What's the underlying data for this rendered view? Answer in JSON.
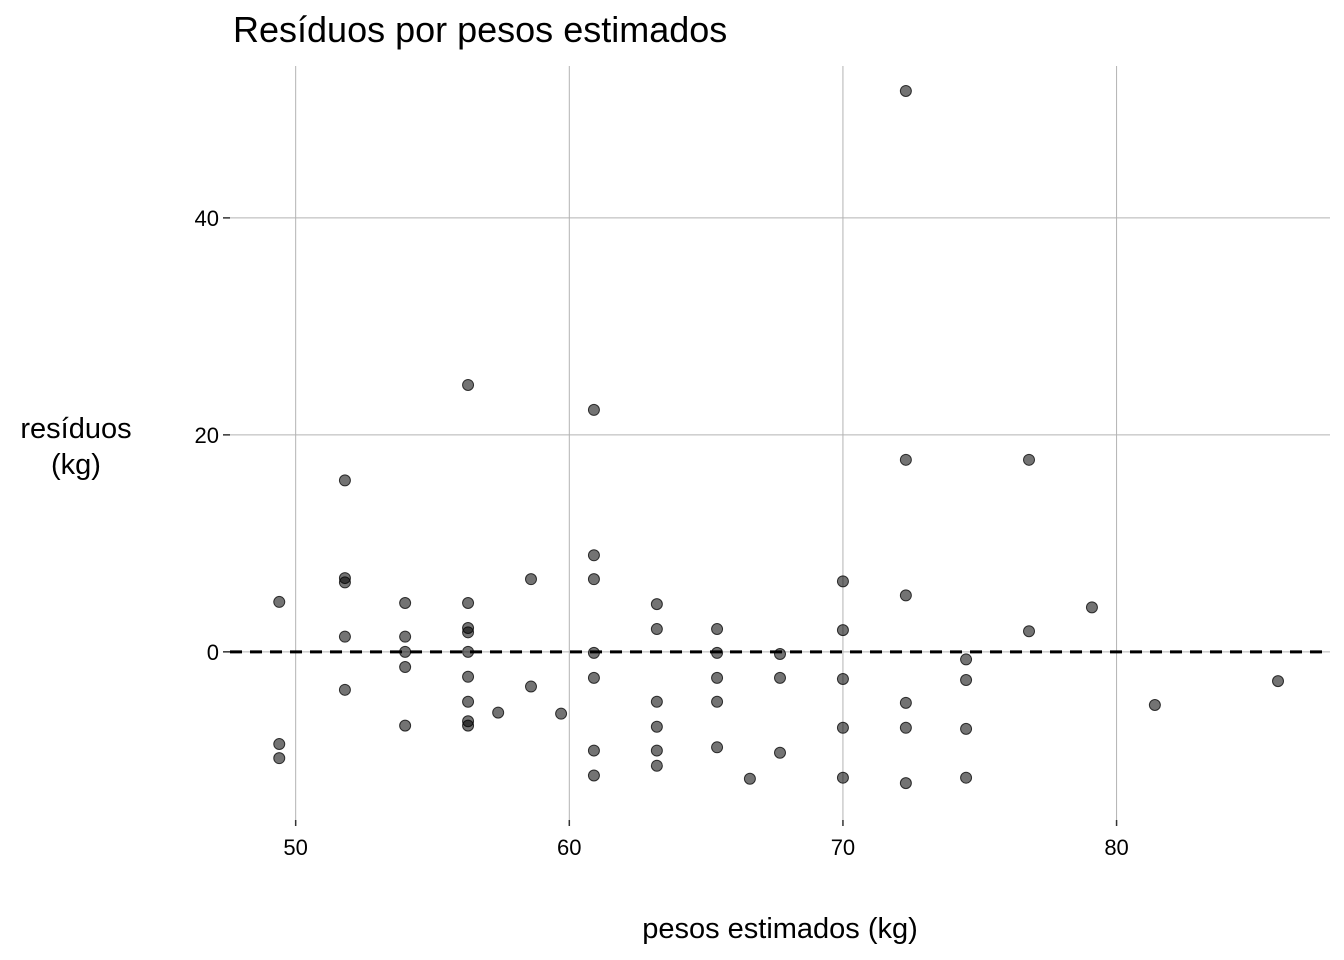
{
  "chart_data": {
    "type": "scatter",
    "title": "Resíduos por pesos estimados",
    "xlabel": "pesos estimados (kg)",
    "ylabel_lines": [
      "resíduos",
      "(kg)"
    ],
    "xlim": [
      47.6,
      87.8
    ],
    "ylim": [
      -15.5,
      54.0
    ],
    "xticks": [
      50,
      60,
      70,
      80
    ],
    "yticks": [
      0,
      20,
      40
    ],
    "xtick_labels": [
      "50",
      "60",
      "70",
      "80"
    ],
    "ytick_labels": [
      "0",
      "20",
      "40"
    ],
    "grid": true,
    "reference_line": {
      "y": 0,
      "style": "dashed"
    },
    "point_color": "#000000",
    "points": [
      {
        "x": 49.4,
        "y": 4.6
      },
      {
        "x": 49.4,
        "y": -8.5
      },
      {
        "x": 49.4,
        "y": -9.8
      },
      {
        "x": 51.8,
        "y": 15.8
      },
      {
        "x": 51.8,
        "y": 6.8
      },
      {
        "x": 51.8,
        "y": 6.4
      },
      {
        "x": 51.8,
        "y": 1.4
      },
      {
        "x": 51.8,
        "y": -3.5
      },
      {
        "x": 54.0,
        "y": 4.5
      },
      {
        "x": 54.0,
        "y": 1.4
      },
      {
        "x": 54.0,
        "y": 0.0
      },
      {
        "x": 54.0,
        "y": -1.4
      },
      {
        "x": 54.0,
        "y": -6.8
      },
      {
        "x": 56.3,
        "y": 24.6
      },
      {
        "x": 56.3,
        "y": 4.5
      },
      {
        "x": 56.3,
        "y": 2.2
      },
      {
        "x": 56.3,
        "y": 1.8
      },
      {
        "x": 56.3,
        "y": 0.0
      },
      {
        "x": 56.3,
        "y": -2.3
      },
      {
        "x": 56.3,
        "y": -4.6
      },
      {
        "x": 56.3,
        "y": -6.4
      },
      {
        "x": 56.3,
        "y": -6.8
      },
      {
        "x": 57.4,
        "y": -5.6
      },
      {
        "x": 58.6,
        "y": 6.7
      },
      {
        "x": 58.6,
        "y": -3.2
      },
      {
        "x": 59.7,
        "y": -5.7
      },
      {
        "x": 60.9,
        "y": 22.3
      },
      {
        "x": 60.9,
        "y": 8.9
      },
      {
        "x": 60.9,
        "y": 6.7
      },
      {
        "x": 60.9,
        "y": -0.1
      },
      {
        "x": 60.9,
        "y": -2.4
      },
      {
        "x": 60.9,
        "y": -9.1
      },
      {
        "x": 60.9,
        "y": -11.4
      },
      {
        "x": 63.2,
        "y": 4.4
      },
      {
        "x": 63.2,
        "y": 2.1
      },
      {
        "x": 63.2,
        "y": -4.6
      },
      {
        "x": 63.2,
        "y": -6.9
      },
      {
        "x": 63.2,
        "y": -9.1
      },
      {
        "x": 63.2,
        "y": -10.5
      },
      {
        "x": 65.4,
        "y": 2.1
      },
      {
        "x": 65.4,
        "y": -0.1
      },
      {
        "x": 65.4,
        "y": -2.4
      },
      {
        "x": 65.4,
        "y": -4.6
      },
      {
        "x": 65.4,
        "y": -8.8
      },
      {
        "x": 66.6,
        "y": -11.7
      },
      {
        "x": 67.7,
        "y": -0.2
      },
      {
        "x": 67.7,
        "y": -2.4
      },
      {
        "x": 67.7,
        "y": -9.3
      },
      {
        "x": 70.0,
        "y": 6.5
      },
      {
        "x": 70.0,
        "y": 2.0
      },
      {
        "x": 70.0,
        "y": -2.5
      },
      {
        "x": 70.0,
        "y": -7.0
      },
      {
        "x": 70.0,
        "y": -11.6
      },
      {
        "x": 72.3,
        "y": 51.7
      },
      {
        "x": 72.3,
        "y": 17.7
      },
      {
        "x": 72.3,
        "y": 5.2
      },
      {
        "x": 72.3,
        "y": -4.7
      },
      {
        "x": 72.3,
        "y": -7.0
      },
      {
        "x": 72.3,
        "y": -12.1
      },
      {
        "x": 74.5,
        "y": -0.7
      },
      {
        "x": 74.5,
        "y": -2.6
      },
      {
        "x": 74.5,
        "y": -7.1
      },
      {
        "x": 74.5,
        "y": -11.6
      },
      {
        "x": 76.8,
        "y": 17.7
      },
      {
        "x": 76.8,
        "y": 1.9
      },
      {
        "x": 79.1,
        "y": 4.1
      },
      {
        "x": 81.4,
        "y": -4.9
      },
      {
        "x": 85.9,
        "y": -2.7
      }
    ]
  }
}
